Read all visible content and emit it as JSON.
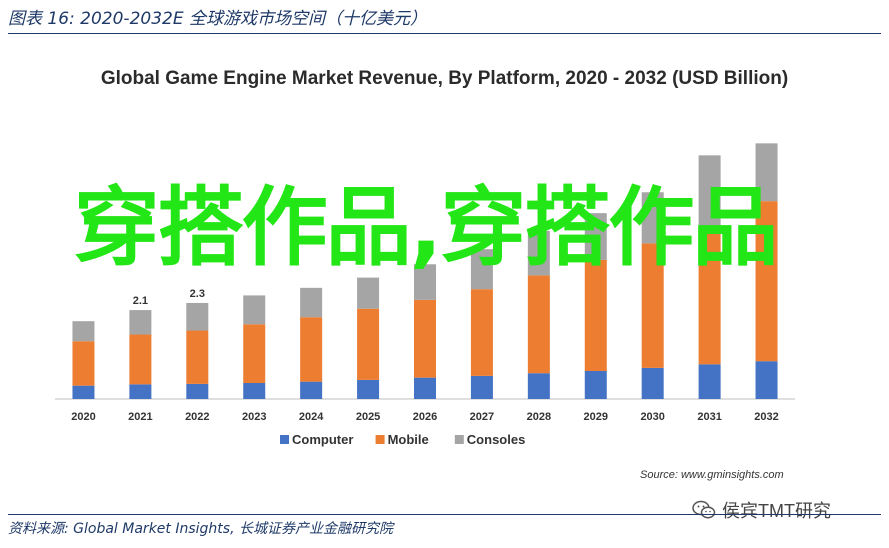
{
  "caption": "图表 16:  2020-2032E 全球游戏市场空间（十亿美元）",
  "source_line": "资料来源: Global Market Insights, 长城证券产业金融研究院",
  "source_note": "Source: www.gminsights.com",
  "wechat_text": "侯宾TMT研究",
  "overlay_text": "穿搭作品,穿搭作品",
  "colors": {
    "computer": "#4472c4",
    "mobile": "#ed7d31",
    "consoles": "#a5a5a5",
    "overlay": "#22e615"
  },
  "chart_data": {
    "type": "bar",
    "stacked": true,
    "title": "Global Game Engine Market Revenue, By Platform, 2020 - 2032 (USD Billion)",
    "categories": [
      "2020",
      "2021",
      "2022",
      "2023",
      "2024",
      "2025",
      "2026",
      "2027",
      "2028",
      "2029",
      "2030",
      "2031",
      "2032"
    ],
    "series": [
      {
        "name": "Computer",
        "values": [
          0.3,
          0.33,
          0.34,
          0.36,
          0.39,
          0.43,
          0.48,
          0.52,
          0.58,
          0.63,
          0.7,
          0.78,
          0.85
        ]
      },
      {
        "name": "Mobile",
        "values": [
          1.0,
          1.12,
          1.2,
          1.32,
          1.45,
          1.6,
          1.75,
          1.95,
          2.2,
          2.5,
          2.8,
          3.1,
          3.6
        ]
      },
      {
        "name": "Consoles",
        "values": [
          0.45,
          0.55,
          0.62,
          0.65,
          0.66,
          0.7,
          0.8,
          0.9,
          1.0,
          1.05,
          1.15,
          1.6,
          1.3
        ]
      }
    ],
    "data_labels": [
      {
        "category": "2021",
        "text": "2.1"
      },
      {
        "category": "2022",
        "text": "2.3"
      }
    ],
    "ylim": [
      0,
      6.5
    ],
    "legend": "bottom-center",
    "grid": false
  }
}
